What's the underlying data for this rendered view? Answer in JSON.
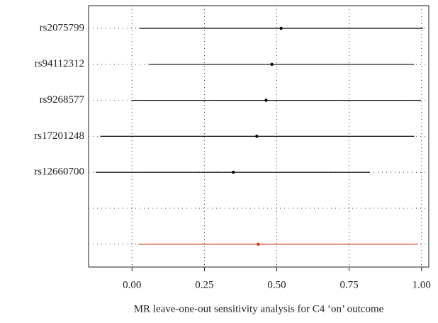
{
  "chart_data": {
    "type": "forest",
    "x_label": "MR leave-one-out sensitivity analysis for C4 ‘on’ outcome",
    "categories": [
      "rs2075799",
      "rs94112312",
      "rs9268577",
      "rs17201248",
      "rs12660700",
      null,
      null
    ],
    "values": [
      0.515,
      0.483,
      0.463,
      0.431,
      0.35,
      null,
      0.436
    ],
    "lower": [
      0.025,
      0.059,
      0.0,
      -0.11,
      -0.125,
      null,
      0.022
    ],
    "upper": [
      1.005,
      0.975,
      0.998,
      0.975,
      0.821,
      null,
      0.988
    ],
    "colors": [
      "#000000",
      "#000000",
      "#000000",
      "#000000",
      "#000000",
      null,
      "#d0321e"
    ],
    "xlim": [
      -0.15,
      1.025
    ],
    "xticks": [
      {
        "value": 0,
        "label": "0.00"
      },
      {
        "value": 0.25,
        "label": "0.25"
      },
      {
        "value": 0.5,
        "label": "0.50"
      },
      {
        "value": 0.75,
        "label": "0.75"
      },
      {
        "value": 1,
        "label": "1.00"
      }
    ],
    "grid": true
  }
}
